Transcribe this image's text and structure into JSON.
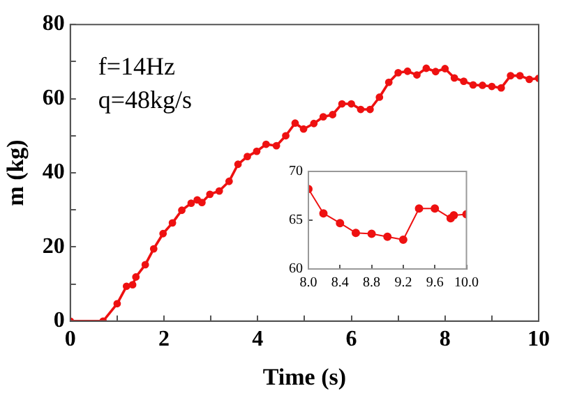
{
  "chart_data": [
    {
      "type": "line",
      "xlabel": "Time (s)",
      "ylabel": "m (kg)",
      "annotations": [
        "f=14Hz",
        "q=48kg/s"
      ],
      "series": [
        {
          "color": "#ee1111",
          "x": [
            0,
            0.7,
            1.0,
            1.2,
            1.33,
            1.4,
            1.6,
            1.78,
            1.98,
            2.18,
            2.38,
            2.58,
            2.71,
            2.81,
            2.98,
            3.18,
            3.39,
            3.58,
            3.78,
            3.98,
            4.18,
            4.4,
            4.6,
            4.8,
            4.98,
            5.2,
            5.4,
            5.6,
            5.8,
            6.0,
            6.2,
            6.4,
            6.6,
            6.8,
            7.0,
            7.2,
            7.4,
            7.6,
            7.8,
            8.0,
            8.2,
            8.4,
            8.6,
            8.8,
            9.0,
            9.2,
            9.4,
            9.6,
            9.8,
            10.0
          ],
          "values": [
            0,
            0,
            4.7,
            9.4,
            9.8,
            11.9,
            15.2,
            19.5,
            23.6,
            26.5,
            29.9,
            31.8,
            32.7,
            32.0,
            34.2,
            35.1,
            37.7,
            42.3,
            44.4,
            45.8,
            47.7,
            47.3,
            50.0,
            53.4,
            51.8,
            53.3,
            55.1,
            55.7,
            58.6,
            58.6,
            57.1,
            57.1,
            60.4,
            64.4,
            67.0,
            67.4,
            66.4,
            68.2,
            67.3,
            68.1,
            65.6,
            64.7,
            63.7,
            63.6,
            63.3,
            62.9,
            66.2,
            66.2,
            65.2,
            65.5
          ]
        }
      ],
      "xlim": [
        0,
        10
      ],
      "xticks": [
        0,
        {
          "value": 1,
          "label": null
        },
        2,
        {
          "value": 3,
          "label": null
        },
        4,
        {
          "value": 5,
          "label": null
        },
        6,
        {
          "value": 7,
          "label": null
        },
        8,
        {
          "value": 9,
          "label": null
        },
        10
      ],
      "ylim": [
        0,
        80
      ],
      "yticks": [
        0,
        {
          "value": 10,
          "label": null
        },
        20,
        {
          "value": 30,
          "label": null
        },
        40,
        {
          "value": 50,
          "label": null
        },
        60,
        {
          "value": 70,
          "label": null
        },
        80
      ],
      "grid": false,
      "legend": false,
      "marker": "circle",
      "line_style": "solid"
    },
    {
      "type": "line",
      "series": [
        {
          "color": "#ee1111",
          "x": [
            8.0,
            8.19,
            8.4,
            8.6,
            8.8,
            9.0,
            9.2,
            9.4,
            9.6,
            9.8,
            9.84,
            10.0
          ],
          "values": [
            68.2,
            65.7,
            64.7,
            63.7,
            63.6,
            63.3,
            63.0,
            66.2,
            66.2,
            65.2,
            65.5,
            65.6
          ]
        }
      ],
      "xlim": [
        8,
        10
      ],
      "xticks": [
        {
          "value": 8,
          "label": "8.0"
        },
        {
          "value": 8.4,
          "label": "8.4"
        },
        {
          "value": 8.8,
          "label": "8.8"
        },
        {
          "value": 9.2,
          "label": "9.2"
        },
        {
          "value": 9.6,
          "label": "9.6"
        },
        {
          "value": 10,
          "label": "10.0"
        }
      ],
      "ylim": [
        60,
        70
      ],
      "yticks": [
        60,
        65,
        70
      ],
      "grid": false,
      "legend": false,
      "marker": "circle",
      "line_style": "solid"
    }
  ]
}
